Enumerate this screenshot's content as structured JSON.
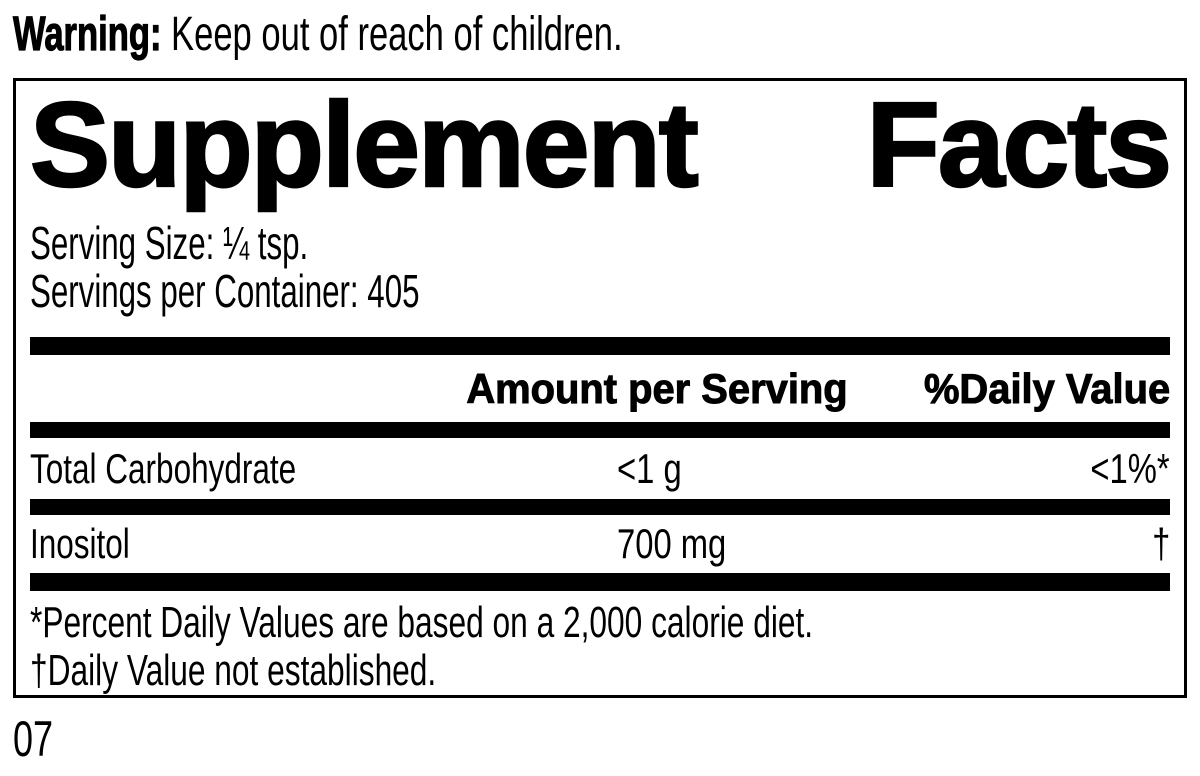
{
  "warning": {
    "label": "Warning:",
    "text": " Keep out of reach of children."
  },
  "panel": {
    "title": {
      "word1": "Supplement",
      "word2": "Facts"
    },
    "serving_size": "Serving Size: ¼ tsp.",
    "servings_per_container": "Servings per Container: 405",
    "columns": {
      "amount": "Amount per Serving",
      "daily_value": "%Daily Value"
    },
    "rows": [
      {
        "name": "Total Carbohydrate",
        "amount": "<1 g",
        "daily_value": "<1%*"
      },
      {
        "name": "Inositol",
        "amount": "700 mg",
        "daily_value": "†"
      }
    ],
    "footnotes": [
      "*Percent Daily Values are based on a 2,000 calorie diet.",
      "†Daily Value not established."
    ]
  },
  "footer_code": "07",
  "colors": {
    "ink": "#000000",
    "background": "#ffffff"
  }
}
